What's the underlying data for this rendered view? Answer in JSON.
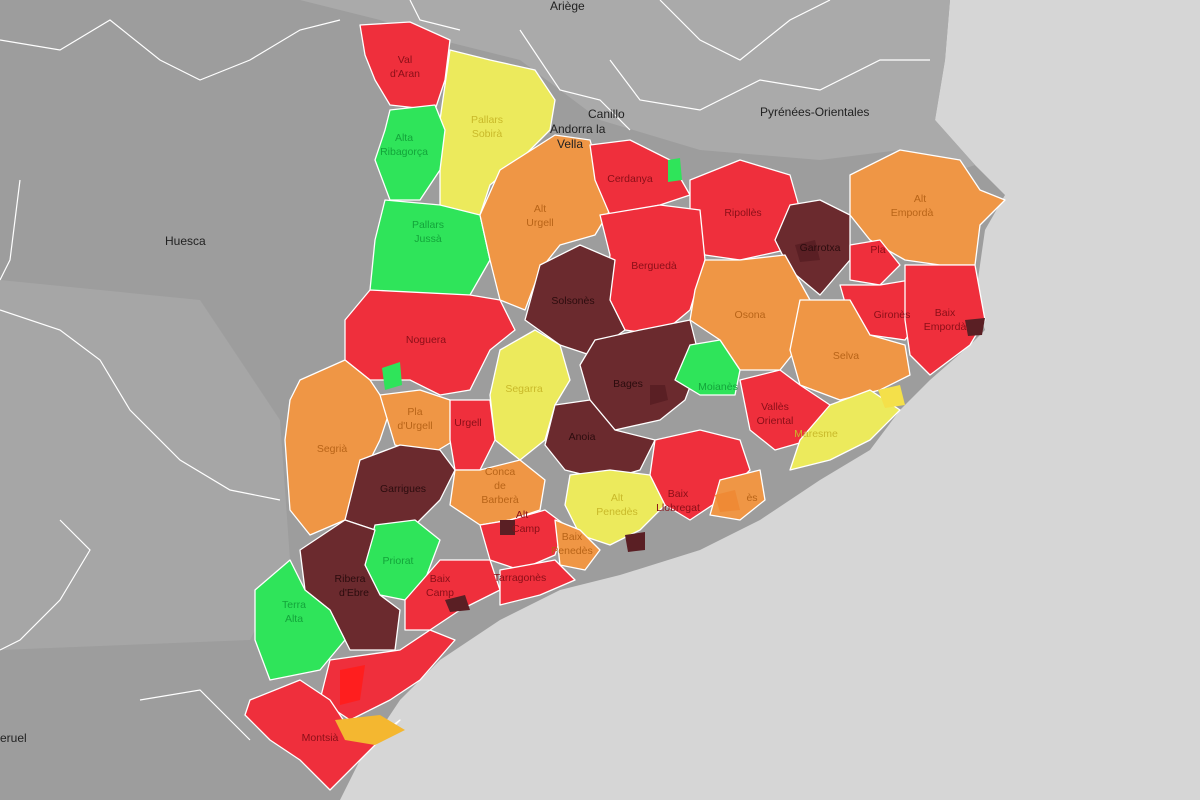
{
  "colors": {
    "sea": "#d6d6d6",
    "land": "#9b9b9b",
    "land_light": "#a9a9a9",
    "dark_red": "#6b2a2e",
    "red": "#ef2f3c",
    "orange": "#ef9645",
    "yellow": "#ecea5c",
    "green": "#2fe45a",
    "bright_red": "#ff1e1e"
  },
  "background_labels": [
    {
      "id": "ariege",
      "text": "Ariège"
    },
    {
      "id": "huesca",
      "text": "Huesca"
    },
    {
      "id": "canillo",
      "text": "Canillo"
    },
    {
      "id": "andorra",
      "text": "Andorra la"
    },
    {
      "id": "andorra2",
      "text": "Vella"
    },
    {
      "id": "pyrenees",
      "text": "Pyrénées-Orientales"
    },
    {
      "id": "teruel",
      "text": "eruel"
    }
  ],
  "regions": [
    {
      "id": "val-daran",
      "label": "Val",
      "label2": "d'Aran",
      "color": "red"
    },
    {
      "id": "pallars-sobira",
      "label": "Pallars",
      "label2": "Sobirà",
      "color": "yellow"
    },
    {
      "id": "alta-ribagorca",
      "label": "Alta",
      "label2": "Ribagorça",
      "color": "green"
    },
    {
      "id": "pallars-jussa",
      "label": "Pallars",
      "label2": "Jussà",
      "color": "green"
    },
    {
      "id": "alt-urgell",
      "label": "Alt",
      "label2": "Urgell",
      "color": "orange"
    },
    {
      "id": "cerdanya",
      "label": "Cerdanya",
      "label2": "",
      "color": "red"
    },
    {
      "id": "ripolles",
      "label": "Ripollès",
      "label2": "",
      "color": "red"
    },
    {
      "id": "garrotxa",
      "label": "Garrotxa",
      "label2": "",
      "color": "dark_red"
    },
    {
      "id": "alt-emporda",
      "label": "Alt",
      "label2": "Empordà",
      "color": "orange"
    },
    {
      "id": "bergueda",
      "label": "Berguedà",
      "label2": "",
      "color": "red"
    },
    {
      "id": "solsones",
      "label": "Solsonès",
      "label2": "",
      "color": "dark_red"
    },
    {
      "id": "osona",
      "label": "Osona",
      "label2": "",
      "color": "orange"
    },
    {
      "id": "pla-estany",
      "label": "Pla",
      "label2": "",
      "color": "red"
    },
    {
      "id": "girones",
      "label": "Gironès",
      "label2": "",
      "color": "red"
    },
    {
      "id": "baix-emporda",
      "label": "Baix",
      "label2": "Empordà",
      "color": "red"
    },
    {
      "id": "selva",
      "label": "Selva",
      "label2": "",
      "color": "orange"
    },
    {
      "id": "noguera",
      "label": "Noguera",
      "label2": "",
      "color": "red"
    },
    {
      "id": "segarra",
      "label": "Segarra",
      "label2": "",
      "color": "yellow"
    },
    {
      "id": "bages",
      "label": "Bages",
      "label2": "",
      "color": "dark_red"
    },
    {
      "id": "moianes",
      "label": "Moianès",
      "label2": "",
      "color": "green"
    },
    {
      "id": "valles-oriental",
      "label": "Vallès",
      "label2": "Oriental",
      "color": "red"
    },
    {
      "id": "maresme",
      "label": "Maresme",
      "label2": "",
      "color": "yellow"
    },
    {
      "id": "segria",
      "label": "Segrià",
      "label2": "",
      "color": "orange"
    },
    {
      "id": "pla-urgell",
      "label": "Pla",
      "label2": "d'Urgell",
      "color": "orange"
    },
    {
      "id": "urgell",
      "label": "Urgell",
      "label2": "",
      "color": "red"
    },
    {
      "id": "anoia",
      "label": "Anoia",
      "label2": "",
      "color": "dark_red"
    },
    {
      "id": "garrigues",
      "label": "Garrigues",
      "label2": "",
      "color": "dark_red"
    },
    {
      "id": "conca-barbera",
      "label": "Conca",
      "label2": "de",
      "label3": "Barberà",
      "color": "orange"
    },
    {
      "id": "alt-penedes",
      "label": "Alt",
      "label2": "Penedès",
      "color": "yellow"
    },
    {
      "id": "baix-llobregat",
      "label": "Baix",
      "label2": "Llobregat",
      "color": "red"
    },
    {
      "id": "barcelones",
      "label": "ès",
      "label2": "",
      "color": "orange"
    },
    {
      "id": "alt-camp",
      "label": "Alt",
      "label2": "Camp",
      "color": "red"
    },
    {
      "id": "baix-penedes",
      "label": "Baix",
      "label2": "Penedès",
      "color": "orange"
    },
    {
      "id": "priorat",
      "label": "Priorat",
      "label2": "",
      "color": "green"
    },
    {
      "id": "ribera-debre",
      "label": "Ribera",
      "label2": "d'Ebre",
      "color": "dark_red"
    },
    {
      "id": "terra-alta",
      "label": "Terra",
      "label2": "Alta",
      "color": "green"
    },
    {
      "id": "baix-camp",
      "label": "Baix",
      "label2": "Camp",
      "color": "red"
    },
    {
      "id": "tarragones",
      "label": "Tarragonès",
      "label2": "",
      "color": "red"
    },
    {
      "id": "baix-ebre",
      "label": "",
      "label2": "",
      "color": "red"
    },
    {
      "id": "montsia",
      "label": "Montsià",
      "label2": "",
      "color": "red"
    }
  ]
}
